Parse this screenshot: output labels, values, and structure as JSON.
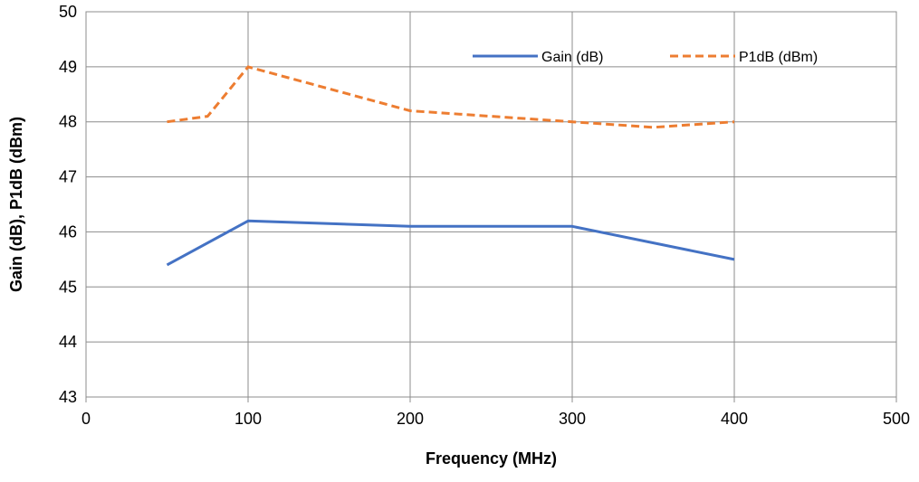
{
  "chart_data": {
    "type": "line",
    "xlabel": "Frequency (MHz)",
    "ylabel": "Gain (dB), P1dB (dBm)",
    "xlim": [
      0,
      500
    ],
    "ylim": [
      43,
      50
    ],
    "xticks": [
      0,
      100,
      200,
      300,
      400,
      500
    ],
    "yticks": [
      43,
      44,
      45,
      46,
      47,
      48,
      49,
      50
    ],
    "grid": true,
    "legend_position": "top-right",
    "series": [
      {
        "name": "Gain (dB)",
        "color": "#4472C4",
        "dash": "solid",
        "x": [
          50,
          100,
          200,
          300,
          400
        ],
        "y": [
          45.4,
          46.2,
          46.1,
          46.1,
          45.5
        ]
      },
      {
        "name": "P1dB (dBm)",
        "color": "#ED7D31",
        "dash": "dashed",
        "x": [
          50,
          75,
          100,
          200,
          300,
          350,
          400
        ],
        "y": [
          48.0,
          48.1,
          49.0,
          48.2,
          48.0,
          47.9,
          48.0
        ]
      }
    ]
  }
}
